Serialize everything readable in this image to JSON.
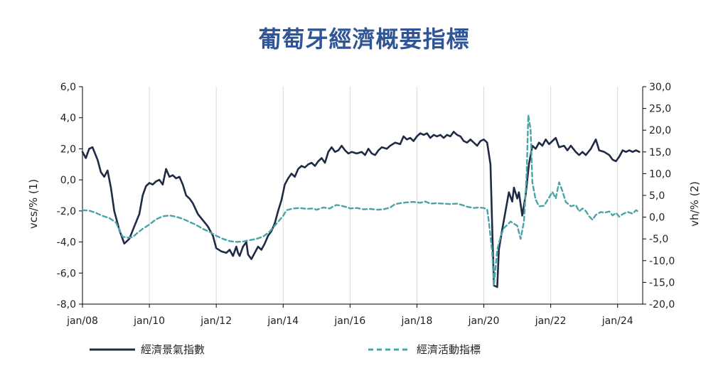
{
  "chart_data": {
    "type": "line",
    "title": "葡萄牙經濟概要指標",
    "ylabel_left": "vcs/% (1)",
    "ylabel_right": "vh/% (2)",
    "ylim_left": [
      -8,
      6
    ],
    "ylim_right": [
      -20,
      30
    ],
    "xlim": [
      2008.0,
      2024.75
    ],
    "left_ticks": [
      "6,0",
      "4,0",
      "2,0",
      "0,0",
      "-2,0",
      "-4,0",
      "-6,0",
      "-8,0"
    ],
    "right_ticks": [
      "30,0",
      "25,0",
      "20,0",
      "15,0",
      "10,0",
      "5,0",
      "0,0",
      "-5,0",
      "-10,0",
      "-15,0",
      "-20,0"
    ],
    "x_ticks": [
      "jan/08",
      "jan/10",
      "jan/12",
      "jan/14",
      "jan/16",
      "jan/18",
      "jan/20",
      "jan/22",
      "jan/24"
    ],
    "grid": "vertical",
    "legend_position": "bottom",
    "colors": {
      "series1": "#1f2a44",
      "series2": "#4aa3a8",
      "title": "#2f5597"
    },
    "series": [
      {
        "name": "經濟景氣指數",
        "axis": "left",
        "style": "solid",
        "points": [
          [
            2008.0,
            1.8
          ],
          [
            2008.1,
            1.4
          ],
          [
            2008.2,
            2.0
          ],
          [
            2008.3,
            2.1
          ],
          [
            2008.45,
            1.3
          ],
          [
            2008.55,
            0.5
          ],
          [
            2008.65,
            0.2
          ],
          [
            2008.75,
            0.6
          ],
          [
            2008.85,
            -0.5
          ],
          [
            2008.95,
            -2.0
          ],
          [
            2009.1,
            -3.2
          ],
          [
            2009.25,
            -4.1
          ],
          [
            2009.4,
            -3.8
          ],
          [
            2009.55,
            -3.0
          ],
          [
            2009.7,
            -2.2
          ],
          [
            2009.8,
            -1.0
          ],
          [
            2009.9,
            -0.4
          ],
          [
            2010.0,
            -0.2
          ],
          [
            2010.1,
            -0.3
          ],
          [
            2010.2,
            -0.1
          ],
          [
            2010.3,
            0.0
          ],
          [
            2010.4,
            -0.3
          ],
          [
            2010.5,
            0.7
          ],
          [
            2010.6,
            0.2
          ],
          [
            2010.7,
            0.3
          ],
          [
            2010.8,
            0.1
          ],
          [
            2010.9,
            0.2
          ],
          [
            2011.0,
            -0.3
          ],
          [
            2011.1,
            -1.0
          ],
          [
            2011.2,
            -1.2
          ],
          [
            2011.3,
            -1.5
          ],
          [
            2011.45,
            -2.2
          ],
          [
            2011.6,
            -2.6
          ],
          [
            2011.75,
            -3.0
          ],
          [
            2011.9,
            -3.6
          ],
          [
            2012.0,
            -4.4
          ],
          [
            2012.15,
            -4.6
          ],
          [
            2012.3,
            -4.7
          ],
          [
            2012.4,
            -4.5
          ],
          [
            2012.5,
            -4.9
          ],
          [
            2012.55,
            -4.6
          ],
          [
            2012.6,
            -4.3
          ],
          [
            2012.65,
            -4.7
          ],
          [
            2012.7,
            -4.9
          ],
          [
            2012.8,
            -4.3
          ],
          [
            2012.9,
            -4.0
          ],
          [
            2012.95,
            -4.8
          ],
          [
            2013.05,
            -5.1
          ],
          [
            2013.15,
            -4.7
          ],
          [
            2013.25,
            -4.3
          ],
          [
            2013.35,
            -4.5
          ],
          [
            2013.45,
            -4.1
          ],
          [
            2013.55,
            -3.6
          ],
          [
            2013.65,
            -3.3
          ],
          [
            2013.75,
            -2.8
          ],
          [
            2013.85,
            -2.0
          ],
          [
            2013.95,
            -1.3
          ],
          [
            2014.05,
            -0.3
          ],
          [
            2014.15,
            0.1
          ],
          [
            2014.25,
            0.4
          ],
          [
            2014.35,
            0.2
          ],
          [
            2014.45,
            0.7
          ],
          [
            2014.55,
            0.9
          ],
          [
            2014.65,
            0.8
          ],
          [
            2014.75,
            1.0
          ],
          [
            2014.85,
            1.1
          ],
          [
            2014.95,
            0.9
          ],
          [
            2015.05,
            1.2
          ],
          [
            2015.15,
            1.4
          ],
          [
            2015.25,
            1.1
          ],
          [
            2015.35,
            1.8
          ],
          [
            2015.45,
            2.1
          ],
          [
            2015.55,
            1.8
          ],
          [
            2015.65,
            1.9
          ],
          [
            2015.75,
            2.2
          ],
          [
            2015.85,
            1.9
          ],
          [
            2015.95,
            1.7
          ],
          [
            2016.05,
            1.8
          ],
          [
            2016.2,
            1.7
          ],
          [
            2016.35,
            1.8
          ],
          [
            2016.45,
            1.6
          ],
          [
            2016.55,
            2.0
          ],
          [
            2016.65,
            1.7
          ],
          [
            2016.75,
            1.6
          ],
          [
            2016.85,
            1.9
          ],
          [
            2016.95,
            2.1
          ],
          [
            2017.1,
            2.0
          ],
          [
            2017.2,
            2.2
          ],
          [
            2017.35,
            2.4
          ],
          [
            2017.5,
            2.3
          ],
          [
            2017.6,
            2.8
          ],
          [
            2017.7,
            2.6
          ],
          [
            2017.8,
            2.7
          ],
          [
            2017.9,
            2.5
          ],
          [
            2018.0,
            2.8
          ],
          [
            2018.1,
            3.0
          ],
          [
            2018.2,
            2.9
          ],
          [
            2018.3,
            3.0
          ],
          [
            2018.4,
            2.7
          ],
          [
            2018.5,
            2.9
          ],
          [
            2018.6,
            2.8
          ],
          [
            2018.7,
            2.9
          ],
          [
            2018.8,
            2.7
          ],
          [
            2018.9,
            2.9
          ],
          [
            2019.0,
            2.8
          ],
          [
            2019.1,
            3.1
          ],
          [
            2019.2,
            2.9
          ],
          [
            2019.3,
            2.8
          ],
          [
            2019.4,
            2.5
          ],
          [
            2019.5,
            2.4
          ],
          [
            2019.6,
            2.6
          ],
          [
            2019.7,
            2.4
          ],
          [
            2019.8,
            2.2
          ],
          [
            2019.9,
            2.5
          ],
          [
            2020.0,
            2.6
          ],
          [
            2020.1,
            2.4
          ],
          [
            2020.2,
            1.0
          ],
          [
            2020.25,
            -3.0
          ],
          [
            2020.3,
            -6.8
          ],
          [
            2020.4,
            -6.9
          ],
          [
            2020.45,
            -4.5
          ],
          [
            2020.55,
            -3.2
          ],
          [
            2020.65,
            -2.0
          ],
          [
            2020.75,
            -0.8
          ],
          [
            2020.85,
            -1.4
          ],
          [
            2020.9,
            -0.5
          ],
          [
            2021.0,
            -1.2
          ],
          [
            2021.05,
            -0.8
          ],
          [
            2021.15,
            -2.3
          ],
          [
            2021.25,
            -1.0
          ],
          [
            2021.35,
            1.0
          ],
          [
            2021.45,
            2.2
          ],
          [
            2021.55,
            2.0
          ],
          [
            2021.65,
            2.4
          ],
          [
            2021.75,
            2.2
          ],
          [
            2021.85,
            2.6
          ],
          [
            2021.95,
            2.3
          ],
          [
            2022.05,
            2.5
          ],
          [
            2022.15,
            2.7
          ],
          [
            2022.25,
            2.1
          ],
          [
            2022.4,
            2.2
          ],
          [
            2022.5,
            1.9
          ],
          [
            2022.6,
            2.2
          ],
          [
            2022.75,
            1.8
          ],
          [
            2022.85,
            1.6
          ],
          [
            2022.95,
            1.8
          ],
          [
            2023.05,
            1.6
          ],
          [
            2023.2,
            2.0
          ],
          [
            2023.35,
            2.6
          ],
          [
            2023.45,
            1.9
          ],
          [
            2023.6,
            1.8
          ],
          [
            2023.75,
            1.6
          ],
          [
            2023.85,
            1.3
          ],
          [
            2023.95,
            1.2
          ],
          [
            2024.05,
            1.5
          ],
          [
            2024.15,
            1.9
          ],
          [
            2024.25,
            1.8
          ],
          [
            2024.35,
            1.9
          ],
          [
            2024.45,
            1.8
          ],
          [
            2024.55,
            1.9
          ],
          [
            2024.65,
            1.8
          ]
        ]
      },
      {
        "name": "經濟活動指標",
        "axis": "right",
        "style": "dashed",
        "points": [
          [
            2008.0,
            1.6
          ],
          [
            2008.2,
            1.5
          ],
          [
            2008.4,
            1.0
          ],
          [
            2008.6,
            0.3
          ],
          [
            2008.8,
            -0.2
          ],
          [
            2009.0,
            -1.2
          ],
          [
            2009.1,
            -2.8
          ],
          [
            2009.2,
            -4.5
          ],
          [
            2009.35,
            -4.7
          ],
          [
            2009.5,
            -4.6
          ],
          [
            2009.65,
            -3.6
          ],
          [
            2009.8,
            -2.7
          ],
          [
            2010.0,
            -1.7
          ],
          [
            2010.2,
            -0.5
          ],
          [
            2010.4,
            0.2
          ],
          [
            2010.6,
            0.4
          ],
          [
            2010.8,
            0.1
          ],
          [
            2011.0,
            -0.4
          ],
          [
            2011.2,
            -1.1
          ],
          [
            2011.4,
            -1.8
          ],
          [
            2011.6,
            -2.7
          ],
          [
            2011.8,
            -3.4
          ],
          [
            2012.0,
            -4.3
          ],
          [
            2012.2,
            -5.0
          ],
          [
            2012.4,
            -5.5
          ],
          [
            2012.6,
            -5.7
          ],
          [
            2012.8,
            -5.6
          ],
          [
            2013.0,
            -5.3
          ],
          [
            2013.2,
            -5.0
          ],
          [
            2013.4,
            -4.5
          ],
          [
            2013.6,
            -3.3
          ],
          [
            2013.8,
            -1.5
          ],
          [
            2014.0,
            0.3
          ],
          [
            2014.1,
            1.6
          ],
          [
            2014.3,
            2.0
          ],
          [
            2014.5,
            2.1
          ],
          [
            2014.7,
            1.9
          ],
          [
            2014.9,
            2.0
          ],
          [
            2015.0,
            1.7
          ],
          [
            2015.2,
            2.2
          ],
          [
            2015.4,
            2.0
          ],
          [
            2015.5,
            2.5
          ],
          [
            2015.6,
            2.8
          ],
          [
            2015.75,
            2.6
          ],
          [
            2015.9,
            2.3
          ],
          [
            2016.0,
            2.0
          ],
          [
            2016.2,
            2.1
          ],
          [
            2016.4,
            1.8
          ],
          [
            2016.6,
            1.9
          ],
          [
            2016.8,
            1.7
          ],
          [
            2017.0,
            1.8
          ],
          [
            2017.2,
            2.2
          ],
          [
            2017.35,
            3.0
          ],
          [
            2017.5,
            3.2
          ],
          [
            2017.7,
            3.4
          ],
          [
            2017.9,
            3.5
          ],
          [
            2018.1,
            3.3
          ],
          [
            2018.25,
            3.6
          ],
          [
            2018.4,
            3.1
          ],
          [
            2018.6,
            3.2
          ],
          [
            2018.8,
            3.1
          ],
          [
            2019.0,
            3.0
          ],
          [
            2019.2,
            3.1
          ],
          [
            2019.35,
            2.8
          ],
          [
            2019.5,
            2.4
          ],
          [
            2019.7,
            2.1
          ],
          [
            2019.85,
            2.2
          ],
          [
            2020.0,
            2.1
          ],
          [
            2020.1,
            1.8
          ],
          [
            2020.15,
            -1.0
          ],
          [
            2020.25,
            -8.0
          ],
          [
            2020.3,
            -15.8
          ],
          [
            2020.4,
            -7.5
          ],
          [
            2020.5,
            -4.5
          ],
          [
            2020.6,
            -2.5
          ],
          [
            2020.7,
            -1.8
          ],
          [
            2020.8,
            -1.0
          ],
          [
            2020.9,
            -1.5
          ],
          [
            2021.0,
            -2.0
          ],
          [
            2021.1,
            -5.0
          ],
          [
            2021.2,
            -1.0
          ],
          [
            2021.28,
            10.0
          ],
          [
            2021.33,
            23.5
          ],
          [
            2021.4,
            20.0
          ],
          [
            2021.45,
            8.0
          ],
          [
            2021.55,
            4.0
          ],
          [
            2021.65,
            2.5
          ],
          [
            2021.8,
            2.6
          ],
          [
            2021.95,
            4.5
          ],
          [
            2022.05,
            5.8
          ],
          [
            2022.15,
            4.3
          ],
          [
            2022.25,
            8.0
          ],
          [
            2022.35,
            6.0
          ],
          [
            2022.45,
            3.5
          ],
          [
            2022.6,
            2.5
          ],
          [
            2022.75,
            2.8
          ],
          [
            2022.85,
            1.3
          ],
          [
            2022.95,
            2.0
          ],
          [
            2023.05,
            1.4
          ],
          [
            2023.15,
            0.2
          ],
          [
            2023.25,
            -0.6
          ],
          [
            2023.35,
            0.5
          ],
          [
            2023.5,
            1.2
          ],
          [
            2023.6,
            1.0
          ],
          [
            2023.75,
            1.3
          ],
          [
            2023.85,
            0.4
          ],
          [
            2023.95,
            1.0
          ],
          [
            2024.05,
            0.1
          ],
          [
            2024.15,
            0.7
          ],
          [
            2024.3,
            1.2
          ],
          [
            2024.45,
            0.8
          ],
          [
            2024.55,
            1.6
          ],
          [
            2024.65,
            1.1
          ]
        ]
      }
    ]
  }
}
